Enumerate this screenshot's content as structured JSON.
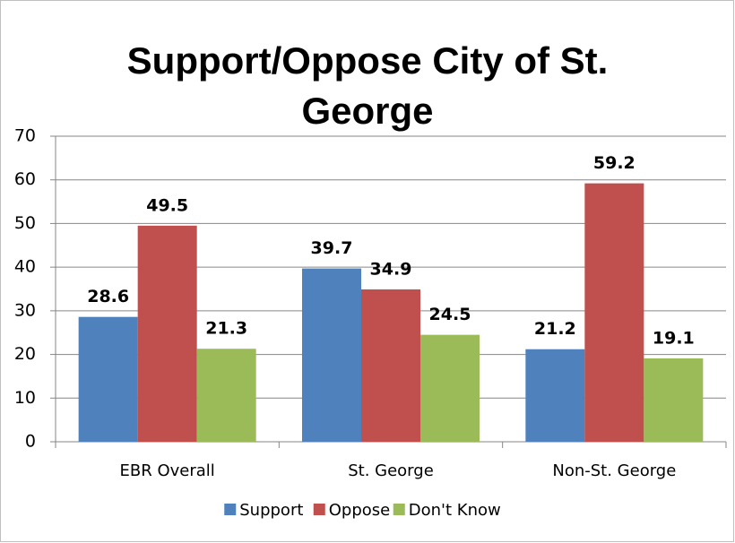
{
  "chart_data": {
    "type": "bar",
    "title": "Support/Oppose City of St. George",
    "categories": [
      "EBR Overall",
      "St. George",
      "Non-St. George"
    ],
    "series": [
      {
        "name": "Support",
        "color": "#4f81bd",
        "values": [
          28.6,
          39.7,
          21.2
        ]
      },
      {
        "name": "Oppose",
        "color": "#c0504d",
        "values": [
          49.5,
          34.9,
          59.2
        ]
      },
      {
        "name": "Don't Know",
        "color": "#9bbb59",
        "values": [
          21.3,
          24.5,
          19.1
        ]
      }
    ],
    "ylim": [
      0,
      70
    ],
    "yticks": [
      0,
      10,
      20,
      30,
      40,
      50,
      60,
      70
    ],
    "grid": true,
    "legend": "bottom"
  }
}
